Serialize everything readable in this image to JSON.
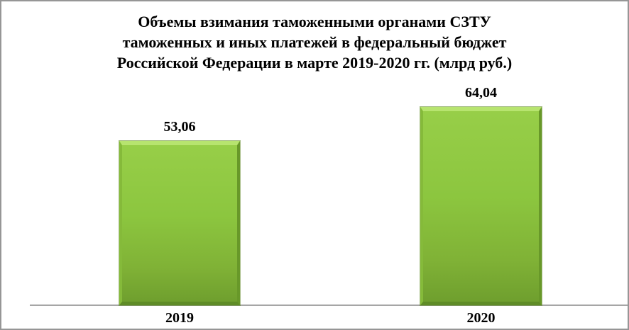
{
  "title_lines": [
    "Объемы взимания таможенными органами СЗТУ",
    "таможенных и иных платежей в федеральный бюджет",
    "Российской Федерации в марте 2019-2020 гг. (млрд руб.)"
  ],
  "chart_data": {
    "type": "bar",
    "title": "Объемы взимания таможенными органами СЗТУ таможенных и иных платежей в федеральный бюджет Российской Федерации в марте 2019-2020 гг. (млрд руб.)",
    "categories": [
      "2019",
      "2020"
    ],
    "values": [
      53.06,
      64.04
    ],
    "value_labels": [
      "53,06",
      "64,04"
    ],
    "xlabel": "",
    "ylabel": "",
    "ylim": [
      0,
      70
    ],
    "grid": false,
    "legend": false,
    "colors": {
      "bar_fill": "#8cc63f",
      "bar_fill_top": "#97ce48",
      "bar_fill_bottom": "#6f9f2e",
      "bar_highlight": "#b7e46f",
      "bar_shadow": "#5f8c27",
      "axis": "#a6a6a6",
      "frame_border": "#969696",
      "text": "#000000"
    }
  }
}
